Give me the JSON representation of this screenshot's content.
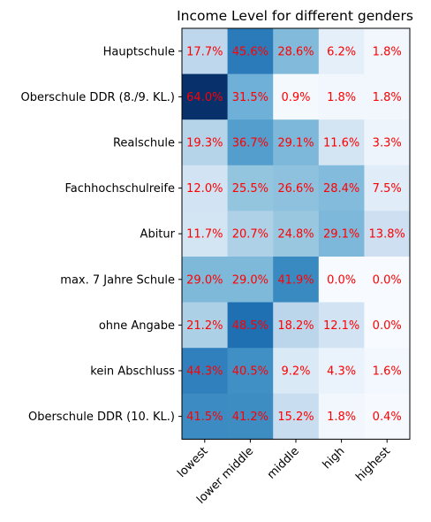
{
  "chart_data": {
    "type": "heatmap",
    "title": "Income Level for different genders",
    "xlabel": "",
    "ylabel": "",
    "x_categories": [
      "lowest",
      "lower middle",
      "middle",
      "high",
      "highest"
    ],
    "y_categories": [
      "Hauptschule",
      "Oberschule DDR (8./9. KL.)",
      "Realschule",
      "Fachhochschulreife",
      "Abitur",
      "max. 7 Jahre Schule",
      "ohne Angabe",
      "kein Abschluss",
      "Oberschule DDR (10. KL.)"
    ],
    "values": [
      [
        17.7,
        45.6,
        28.6,
        6.2,
        1.8
      ],
      [
        64.0,
        31.5,
        0.9,
        1.8,
        1.8
      ],
      [
        19.3,
        36.7,
        29.1,
        11.6,
        3.3
      ],
      [
        12.0,
        25.5,
        26.6,
        28.4,
        7.5
      ],
      [
        11.7,
        20.7,
        24.8,
        29.1,
        13.8
      ],
      [
        29.0,
        29.0,
        41.9,
        0.0,
        0.0
      ],
      [
        21.2,
        48.5,
        18.2,
        12.1,
        0.0
      ],
      [
        44.3,
        40.5,
        9.2,
        4.3,
        1.6
      ],
      [
        41.5,
        41.2,
        15.2,
        1.8,
        0.4
      ]
    ],
    "value_labels": [
      [
        "17.7%",
        "45.6%",
        "28.6%",
        "6.2%",
        "1.8%"
      ],
      [
        "64.0%",
        "31.5%",
        "0.9%",
        "1.8%",
        "1.8%"
      ],
      [
        "19.3%",
        "36.7%",
        "29.1%",
        "11.6%",
        "3.3%"
      ],
      [
        "12.0%",
        "25.5%",
        "26.6%",
        "28.4%",
        "7.5%"
      ],
      [
        "11.7%",
        "20.7%",
        "24.8%",
        "29.1%",
        "13.8%"
      ],
      [
        "29.0%",
        "29.0%",
        "41.9%",
        "0.0%",
        "0.0%"
      ],
      [
        "21.2%",
        "48.5%",
        "18.2%",
        "12.1%",
        "0.0%"
      ],
      [
        "44.3%",
        "40.5%",
        "9.2%",
        "4.3%",
        "1.6%"
      ],
      [
        "41.5%",
        "41.2%",
        "15.2%",
        "1.8%",
        "0.4%"
      ]
    ],
    "colormap": "Blues",
    "value_range": [
      0,
      64.0
    ],
    "label_color": "#ff0000",
    "grid": false,
    "legend": "none"
  }
}
